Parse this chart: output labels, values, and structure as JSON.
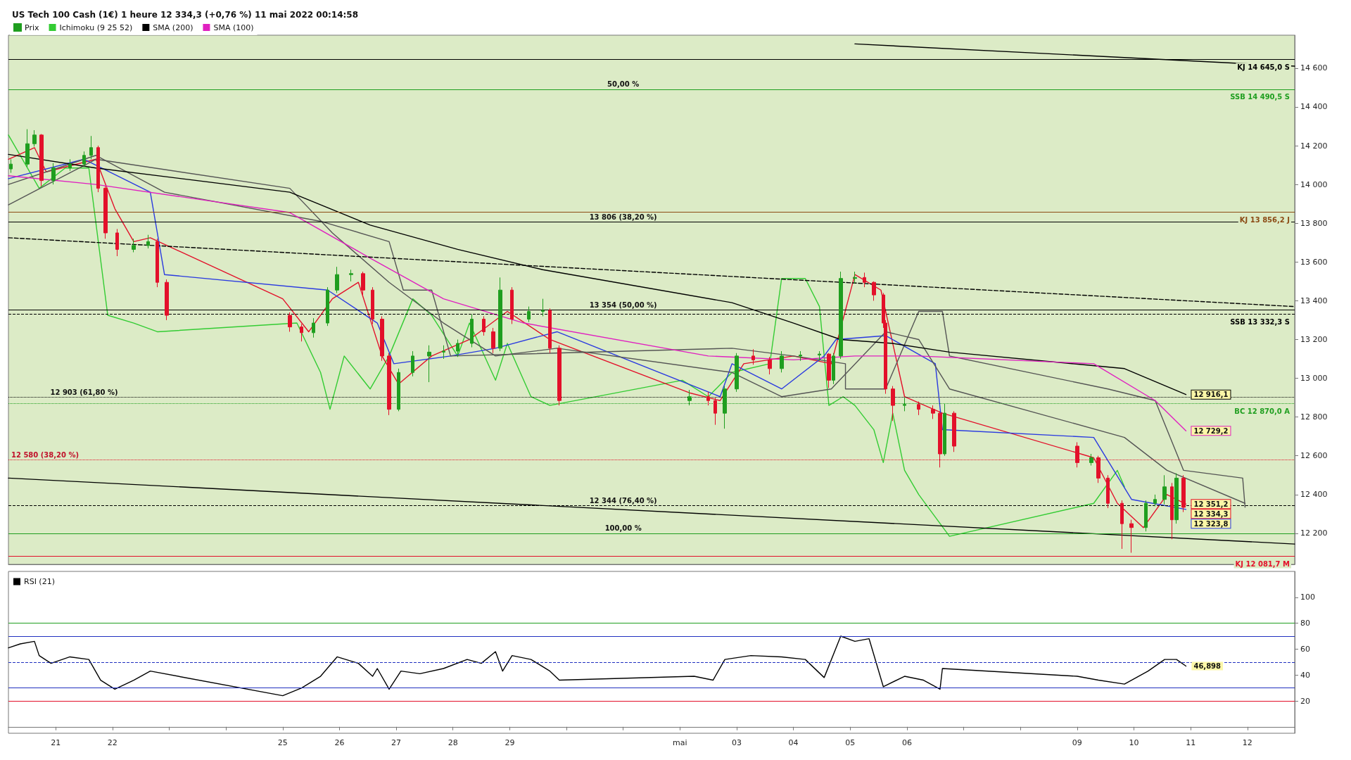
{
  "chart_data": [
    {
      "type": "candlestick",
      "title": "US Tech 100 Cash (1€) 1 heure 12 334,3 (+0,76 %) 11 mai 2022 00:14:58",
      "legend": "top left",
      "marker": "none",
      "tick_labels": "y",
      "xlim": [
        "2022-04-20T04:00",
        "2022-05-12T20:00"
      ],
      "ylim": [
        12040,
        14770
      ],
      "yticks": [
        {
          "value": 12200,
          "label": "12 200"
        },
        {
          "value": 12400,
          "label": "12 400"
        },
        {
          "value": 12600,
          "label": "12 600"
        },
        {
          "value": 12800,
          "label": "12 800"
        },
        {
          "value": 13000,
          "label": "13 000"
        },
        {
          "value": 13200,
          "label": "13 200"
        },
        {
          "value": 13400,
          "label": "13 400"
        },
        {
          "value": 13600,
          "label": "13 600"
        },
        {
          "value": 13800,
          "label": "13 800"
        },
        {
          "value": 14000,
          "label": "14 000"
        },
        {
          "value": 14200,
          "label": "14 200"
        },
        {
          "value": 14400,
          "label": "14 400"
        },
        {
          "value": 14600,
          "label": "14 600"
        }
      ],
      "series": [
        {
          "type": "candlestick",
          "name": "Prix",
          "color": "#1f9e1f",
          "x": [
            "2022-04-20T05:00",
            "2022-04-20T12:00",
            "2022-04-20T15:00",
            "2022-04-20T18:00",
            "2022-04-20T23:00",
            "2022-04-21T06:00",
            "2022-04-21T12:00",
            "2022-04-21T15:00",
            "2022-04-21T18:00",
            "2022-04-21T21:00",
            "2022-04-22T02:00",
            "2022-04-22T09:00",
            "2022-04-22T15:00",
            "2022-04-22T19:00",
            "2022-04-22T23:00",
            "2022-04-25T03:00",
            "2022-04-25T08:00",
            "2022-04-25T13:00",
            "2022-04-25T19:00",
            "2022-04-25T23:00",
            "2022-04-26T05:00",
            "2022-04-26T10:00",
            "2022-04-26T14:00",
            "2022-04-26T18:00",
            "2022-04-26T21:00",
            "2022-04-27T01:00",
            "2022-04-27T07:00",
            "2022-04-27T14:00",
            "2022-04-27T20:00",
            "2022-04-28T02:00",
            "2022-04-28T08:00",
            "2022-04-28T13:00",
            "2022-04-28T17:00",
            "2022-04-28T20:00",
            "2022-04-29T01:00",
            "2022-04-29T08:00",
            "2022-04-29T14:00",
            "2022-04-29T17:00",
            "2022-04-29T21:00",
            "2022-05-02T04:00",
            "2022-05-02T12:00",
            "2022-05-02T15:00",
            "2022-05-02T19:00",
            "2022-05-03T00:00",
            "2022-05-03T07:00",
            "2022-05-03T14:00",
            "2022-05-03T19:00",
            "2022-05-04T03:00",
            "2022-05-04T11:00",
            "2022-05-04T15:00",
            "2022-05-04T17:00",
            "2022-05-04T20:00",
            "2022-05-05T02:00",
            "2022-05-05T06:00",
            "2022-05-05T10:00",
            "2022-05-05T14:00",
            "2022-05-05T15:00",
            "2022-05-05T18:00",
            "2022-05-05T23:00",
            "2022-05-06T05:00",
            "2022-05-06T11:00",
            "2022-05-06T14:00",
            "2022-05-06T16:00",
            "2022-05-06T20:00",
            "2022-05-09T00:00",
            "2022-05-09T06:00",
            "2022-05-09T09:00",
            "2022-05-09T13:00",
            "2022-05-09T19:00",
            "2022-05-09T23:00",
            "2022-05-10T05:00",
            "2022-05-10T09:00",
            "2022-05-10T13:00",
            "2022-05-10T16:00",
            "2022-05-10T18:00",
            "2022-05-10T21:00"
          ],
          "ohlc": [
            [
              14080,
              14130,
              14060,
              14105
            ],
            [
              14105,
              14285,
              14090,
              14210
            ],
            [
              14210,
              14280,
              14195,
              14255
            ],
            [
              14255,
              14260,
              13990,
              14020
            ],
            [
              14020,
              14110,
              14000,
              14085
            ],
            [
              14085,
              14130,
              14070,
              14105
            ],
            [
              14105,
              14170,
              14090,
              14150
            ],
            [
              14150,
              14250,
              14130,
              14190
            ],
            [
              14190,
              14200,
              13960,
              13980
            ],
            [
              13980,
              13990,
              13720,
              13750
            ],
            [
              13750,
              13770,
              13630,
              13665
            ],
            [
              13665,
              13720,
              13650,
              13685
            ],
            [
              13685,
              13740,
              13670,
              13705
            ],
            [
              13705,
              13720,
              13470,
              13495
            ],
            [
              13495,
              13510,
              13300,
              13325
            ],
            [
              13325,
              13340,
              13240,
              13265
            ],
            [
              13265,
              13280,
              13190,
              13235
            ],
            [
              13235,
              13310,
              13210,
              13285
            ],
            [
              13285,
              13470,
              13270,
              13455
            ],
            [
              13455,
              13575,
              13440,
              13535
            ],
            [
              13535,
              13560,
              13500,
              13540
            ],
            [
              13540,
              13550,
              13430,
              13455
            ],
            [
              13455,
              13470,
              13280,
              13305
            ],
            [
              13305,
              13320,
              13090,
              13115
            ],
            [
              13115,
              13130,
              12810,
              12840
            ],
            [
              12840,
              13050,
              12830,
              13030
            ],
            [
              13030,
              13140,
              13010,
              13115
            ],
            [
              13115,
              13170,
              12980,
              13135
            ],
            [
              13135,
              13170,
              13100,
              13140
            ],
            [
              13140,
              13200,
              13110,
              13180
            ],
            [
              13180,
              13330,
              13160,
              13305
            ],
            [
              13305,
              13320,
              13220,
              13240
            ],
            [
              13240,
              13260,
              13130,
              13155
            ],
            [
              13155,
              13520,
              13140,
              13455
            ],
            [
              13455,
              13470,
              13280,
              13305
            ],
            [
              13305,
              13370,
              13290,
              13345
            ],
            [
              13345,
              13410,
              13320,
              13350
            ],
            [
              13350,
              13360,
              13130,
              13155
            ],
            [
              13155,
              13170,
              12860,
              12885
            ],
            [
              12885,
              12940,
              12860,
              12905
            ],
            [
              12905,
              12930,
              12860,
              12885
            ],
            [
              12885,
              12900,
              12760,
              12820
            ],
            [
              12820,
              12960,
              12740,
              12945
            ],
            [
              12945,
              13130,
              12930,
              13115
            ],
            [
              13115,
              13150,
              13070,
              13095
            ],
            [
              13095,
              13110,
              13020,
              13050
            ],
            [
              13050,
              13140,
              13030,
              13115
            ],
            [
              13115,
              13140,
              13090,
              13120
            ],
            [
              13120,
              13140,
              13090,
              13125
            ],
            [
              13125,
              13130,
              12950,
              12990
            ],
            [
              12990,
              13130,
              12970,
              13115
            ],
            [
              13115,
              13550,
              13100,
              13515
            ],
            [
              13515,
              13550,
              13490,
              13520
            ],
            [
              13520,
              13545,
              13470,
              13495
            ],
            [
              13495,
              13500,
              13400,
              13430
            ],
            [
              13430,
              13440,
              13260,
              13285
            ],
            [
              13285,
              13300,
              12920,
              12945
            ],
            [
              12945,
              12960,
              12780,
              12860
            ],
            [
              12860,
              12900,
              12830,
              12865
            ],
            [
              12865,
              12880,
              12810,
              12840
            ],
            [
              12840,
              12860,
              12790,
              12820
            ],
            [
              12820,
              12830,
              12540,
              12610
            ],
            [
              12610,
              12870,
              12600,
              12820
            ],
            [
              12820,
              12830,
              12620,
              12650
            ],
            [
              12650,
              12670,
              12540,
              12565
            ],
            [
              12565,
              12610,
              12550,
              12590
            ],
            [
              12590,
              12600,
              12460,
              12485
            ],
            [
              12485,
              12500,
              12330,
              12355
            ],
            [
              12355,
              12370,
              12120,
              12250
            ],
            [
              12250,
              12270,
              12100,
              12230
            ],
            [
              12230,
              12370,
              12210,
              12355
            ],
            [
              12355,
              12400,
              12340,
              12375
            ],
            [
              12375,
              12500,
              12350,
              12440
            ],
            [
              12440,
              12460,
              12170,
              12270
            ],
            [
              12270,
              12510,
              12250,
              12485
            ],
            [
              12485,
              12500,
              12310,
              12334.3
            ]
          ],
          "colors": [
            "#1f9e1f",
            "#1f9e1f",
            "#1f9e1f",
            "#e3102a",
            "#1f9e1f",
            "#1f9e1f",
            "#1f9e1f",
            "#1f9e1f",
            "#e3102a",
            "#e3102a",
            "#e3102a",
            "#1f9e1f",
            "#1f9e1f",
            "#e3102a",
            "#e3102a",
            "#e3102a",
            "#e3102a",
            "#1f9e1f",
            "#1f9e1f",
            "#1f9e1f",
            "#1f9e1f",
            "#e3102a",
            "#e3102a",
            "#e3102a",
            "#e3102a",
            "#1f9e1f",
            "#1f9e1f",
            "#1f9e1f",
            "#1f9e1f",
            "#1f9e1f",
            "#1f9e1f",
            "#e3102a",
            "#e3102a",
            "#1f9e1f",
            "#e3102a",
            "#1f9e1f",
            "#1f9e1f",
            "#e3102a",
            "#e3102a",
            "#1f9e1f",
            "#e3102a",
            "#e3102a",
            "#1f9e1f",
            "#1f9e1f",
            "#e3102a",
            "#e3102a",
            "#1f9e1f",
            "#1f9e1f",
            "#1f9e1f",
            "#e3102a",
            "#1f9e1f",
            "#1f9e1f",
            "#1f9e1f",
            "#e3102a",
            "#e3102a",
            "#e3102a",
            "#e3102a",
            "#e3102a",
            "#1f9e1f",
            "#e3102a",
            "#e3102a",
            "#e3102a",
            "#1f9e1f",
            "#e3102a",
            "#e3102a",
            "#1f9e1f",
            "#e3102a",
            "#e3102a",
            "#e3102a",
            "#e3102a",
            "#1f9e1f",
            "#1f9e1f",
            "#1f9e1f",
            "#e3102a",
            "#1f9e1f",
            "#e3102a"
          ],
          "value_labels": [
            null,
            null,
            null,
            null,
            null,
            null,
            null,
            null,
            null,
            null,
            null,
            null,
            null,
            null,
            null,
            null,
            null,
            null,
            null,
            null,
            null,
            null,
            null,
            null,
            null,
            null,
            null,
            null,
            null,
            null,
            null,
            null,
            null,
            null,
            null,
            null,
            null,
            null,
            null,
            null,
            null,
            null,
            null,
            null,
            null,
            null,
            null,
            null,
            null,
            null,
            null,
            null,
            null,
            null,
            null,
            null,
            null,
            null,
            null,
            null,
            null,
            null,
            null,
            null,
            null,
            null,
            null,
            null,
            null,
            null,
            null,
            null,
            null,
            null,
            null,
            "12 334,3"
          ]
        },
        {
          "type": "line",
          "name": "Ichimoku (9 25 52)",
          "color": "#33cc33",
          "x": [
            "2022-04-20T04:00",
            "2022-04-20T17:00",
            "2022-04-21T04:00",
            "2022-04-21T14:00",
            "2022-04-21T22:00",
            "2022-04-22T09:00",
            "2022-04-22T19:00",
            "2022-04-25T06:00",
            "2022-04-25T16:00",
            "2022-04-25T20:00",
            "2022-04-26T02:00",
            "2022-04-26T13:00",
            "2022-04-26T21:00",
            "2022-04-27T07:00",
            "2022-04-27T15:00",
            "2022-04-28T02:00",
            "2022-04-28T07:00",
            "2022-04-28T18:00",
            "2022-04-28T23:00",
            "2022-04-29T09:00",
            "2022-04-29T17:00",
            "2022-05-02T01:00",
            "2022-05-02T12:00",
            "2022-05-02T22:00",
            "2022-05-03T14:00",
            "2022-05-03T19:00",
            "2022-05-04T05:00",
            "2022-05-04T11:00",
            "2022-05-04T15:00",
            "2022-05-04T21:00",
            "2022-05-05T02:00",
            "2022-05-05T10:00",
            "2022-05-05T14:00",
            "2022-05-05T18:00",
            "2022-05-05T23:00",
            "2022-05-06T05:00",
            "2022-05-06T18:00",
            "2022-05-09T07:00",
            "2022-05-09T17:00",
            "2022-05-09T20:00"
          ],
          "values": [
            14255,
            13980,
            14085,
            14085,
            13325,
            13285,
            13240,
            13285,
            13030,
            12840,
            13115,
            12945,
            13115,
            13410,
            13325,
            13115,
            13285,
            12990,
            13180,
            12905,
            12860,
            12990,
            12905,
            13030,
            13075,
            13515,
            13515,
            13370,
            12860,
            12905,
            12860,
            12735,
            12565,
            12820,
            12525,
            12400,
            12185,
            12355,
            12525,
            12440
          ]
        },
        {
          "type": "line",
          "color": "#e3102a",
          "x": [
            "2022-04-20T04:00",
            "2022-04-20T15:00",
            "2022-04-20T20:00",
            "2022-04-21T17:00",
            "2022-04-22T01:00",
            "2022-04-22T09:00",
            "2022-04-22T16:00",
            "2022-04-25T00:00",
            "2022-04-25T11:00",
            "2022-04-25T21:00",
            "2022-04-26T08:00",
            "2022-04-26T18:00",
            "2022-04-27T01:00",
            "2022-04-27T15:00",
            "2022-04-28T07:00",
            "2022-04-28T23:00",
            "2022-04-29T17:00",
            "2022-05-02T04:00",
            "2022-05-02T17:00",
            "2022-05-03T03:00",
            "2022-05-04T00:00",
            "2022-05-04T16:00",
            "2022-05-05T02:00",
            "2022-05-05T13:00",
            "2022-05-05T23:00",
            "2022-05-06T15:00",
            "2022-05-09T07:00",
            "2022-05-09T17:00",
            "2022-05-10T04:00",
            "2022-05-10T14:00",
            "2022-05-10T22:00"
          ],
          "values": [
            14130,
            14190,
            14065,
            14130,
            13875,
            13705,
            13725,
            13410,
            13240,
            13410,
            13495,
            13115,
            12970,
            13115,
            13200,
            13345,
            13200,
            12925,
            12885,
            13075,
            13115,
            13075,
            13535,
            13455,
            12905,
            12820,
            12590,
            12355,
            12230,
            12400,
            12351.2
          ],
          "value_labels": [
            null,
            null,
            null,
            null,
            null,
            null,
            null,
            null,
            null,
            null,
            null,
            null,
            null,
            null,
            null,
            null,
            null,
            null,
            null,
            null,
            null,
            null,
            null,
            null,
            null,
            null,
            null,
            null,
            null,
            null,
            "12 351,2"
          ]
        },
        {
          "type": "line",
          "color": "#2a3ae0",
          "x": [
            "2022-04-20T04:00",
            "2022-04-21T12:00",
            "2022-04-22T16:00",
            "2022-04-22T22:00",
            "2022-04-25T19:00",
            "2022-04-26T16:00",
            "2022-04-26T23:00",
            "2022-04-27T23:00",
            "2022-04-28T18:00",
            "2022-04-29T20:00",
            "2022-05-02T17:00",
            "2022-05-02T22:00",
            "2022-05-03T19:00",
            "2022-05-04T13:00",
            "2022-05-04T18:00",
            "2022-05-05T15:00",
            "2022-05-06T12:00",
            "2022-05-06T15:00",
            "2022-05-09T07:00",
            "2022-05-09T23:00",
            "2022-05-10T22:00"
          ],
          "values": [
            14030,
            14130,
            13960,
            13535,
            13455,
            13285,
            13075,
            13115,
            13155,
            13240,
            12905,
            13075,
            12945,
            13115,
            13200,
            13220,
            13075,
            12735,
            12695,
            12375,
            12323.8
          ],
          "value_labels": [
            null,
            null,
            null,
            null,
            null,
            null,
            null,
            null,
            null,
            null,
            null,
            null,
            null,
            null,
            null,
            null,
            null,
            null,
            null,
            null,
            "12 323,8"
          ]
        },
        {
          "type": "line",
          "color": "#555555",
          "x": [
            "2022-04-20T04:00",
            "2022-04-21T17:00",
            "2022-04-25T03:00",
            "2022-04-25T21:00",
            "2022-04-26T21:00",
            "2022-04-27T20:00",
            "2022-04-28T18:00",
            "2022-04-29T20:00",
            "2022-05-02T22:00",
            "2022-05-03T19:00",
            "2022-05-04T16:00",
            "2022-05-05T15:00",
            "2022-05-06T05:00",
            "2022-05-06T18:00",
            "2022-05-09T20:00",
            "2022-05-10T14:00",
            "2022-05-11T23:00"
          ],
          "values": [
            13895,
            14130,
            13980,
            13750,
            13495,
            13285,
            13115,
            13155,
            13030,
            12905,
            12945,
            13240,
            13200,
            12945,
            12695,
            12525,
            12355
          ]
        },
        {
          "type": "line",
          "color": "#555555",
          "x": [
            "2022-04-20T04:00",
            "2022-04-21T17:00",
            "2022-04-22T22:00",
            "2022-04-25T16:00",
            "2022-04-26T21:00",
            "2022-04-27T03:00",
            "2022-04-27T15:00",
            "2022-04-27T23:00",
            "2022-05-02T22:00",
            "2022-05-04T00:00",
            "2022-05-04T22:00",
            "2022-05-04T22:00",
            "2022-05-05T15:00",
            "2022-05-06T05:00",
            "2022-05-06T15:00",
            "2022-05-06T18:00",
            "2022-05-09T13:00",
            "2022-05-10T09:00",
            "2022-05-10T21:00",
            "2022-05-11T22:00",
            "2022-05-11T23:00"
          ],
          "values": [
            14000,
            14150,
            13960,
            13810,
            13705,
            13455,
            13455,
            13115,
            13155,
            13115,
            13075,
            12945,
            12945,
            13345,
            13345,
            13115,
            12945,
            12885,
            12525,
            12485,
            12335
          ]
        },
        {
          "type": "line",
          "name": "SMA (200)",
          "color": "#000000",
          "x": [
            "2022-04-20T04:00",
            "2022-04-21T17:00",
            "2022-04-25T03:00",
            "2022-04-26T13:00",
            "2022-04-28T02:00",
            "2022-04-29T14:00",
            "2022-05-02T22:00",
            "2022-05-04T00:00",
            "2022-05-04T20:00",
            "2022-05-05T18:00",
            "2022-05-06T18:00",
            "2022-05-09T20:00",
            "2022-05-10T22:00"
          ],
          "values": [
            14155,
            14085,
            13960,
            13790,
            13665,
            13560,
            13390,
            13285,
            13200,
            13180,
            13135,
            13050,
            12916.1
          ],
          "value_labels": [
            null,
            null,
            null,
            null,
            null,
            null,
            null,
            null,
            null,
            null,
            null,
            null,
            "12 916,1"
          ]
        },
        {
          "type": "line",
          "name": "SMA (100)",
          "color": "#e020c0",
          "x": [
            "2022-04-20T04:00",
            "2022-04-21T17:00",
            "2022-04-25T03:00",
            "2022-04-26T13:00",
            "2022-04-27T20:00",
            "2022-04-29T06:00",
            "2022-05-02T12:00",
            "2022-05-04T00:00",
            "2022-05-05T02:00",
            "2022-05-06T05:00",
            "2022-05-09T07:00",
            "2022-05-10T09:00",
            "2022-05-10T22:00"
          ],
          "values": [
            14045,
            14000,
            13855,
            13620,
            13410,
            13285,
            13115,
            13095,
            13115,
            13115,
            13075,
            12885,
            12729.2
          ],
          "value_labels": [
            null,
            null,
            null,
            null,
            null,
            null,
            null,
            null,
            null,
            null,
            null,
            null,
            "12 729,2"
          ]
        },
        {
          "type": "line",
          "color": "#000000",
          "x": [
            "2022-05-05T02:00",
            "2022-05-12T20:00"
          ],
          "values": [
            14725,
            14610
          ]
        },
        {
          "type": "line",
          "color": "#000000",
          "line_style": "dashed",
          "x": [
            "2022-04-20T04:00",
            "2022-05-12T20:00"
          ],
          "values": [
            13725,
            13370
          ]
        },
        {
          "type": "line",
          "color": "#000000",
          "x": [
            "2022-04-20T04:00",
            "2022-05-12T20:00"
          ],
          "values": [
            12485,
            12145
          ]
        }
      ],
      "ref_lines": [
        {
          "axis": "y",
          "value": 14645,
          "label": "KJ 14 645,0 S",
          "color": "#000000"
        },
        {
          "axis": "y",
          "value": 14490.5,
          "label": "SSB 14 490,5 S",
          "color": "#1f9e1f"
        },
        {
          "axis": "y",
          "value": 13856.2,
          "label": "KJ 13 856,2 J",
          "color": "#8b4a14"
        },
        {
          "axis": "y",
          "value": 13806,
          "color": "#000000"
        },
        {
          "axis": "y",
          "value": 13354,
          "color": "#000000"
        },
        {
          "axis": "y",
          "value": 13332.3,
          "label": "SSB 13 332,3 S",
          "color": "#000000",
          "line_style": "dashed"
        },
        {
          "axis": "y",
          "value": 12903,
          "color": "#000000",
          "line_style": "dotted"
        },
        {
          "axis": "y",
          "value": 12870,
          "label": "BC 12 870,0 A",
          "color": "#1f9e1f",
          "line_style": "dotted"
        },
        {
          "axis": "y",
          "value": 12580,
          "color": "#e3102a",
          "line_style": "dotted"
        },
        {
          "axis": "y",
          "value": 12344,
          "color": "#000000",
          "line_style": "dashed"
        },
        {
          "axis": "y",
          "value": 12200,
          "color": "#1f9e1f"
        },
        {
          "axis": "y",
          "value": 12081.7,
          "label": "KJ 12 081,7 M",
          "color": "#e3102a"
        }
      ],
      "annotations": [
        {
          "text": "50,00 %",
          "x": "2022-05-01T00:00",
          "y": 14490.5
        },
        {
          "text": "13 806 (38,20 %)",
          "x": "2022-05-01T00:00",
          "y": 13806
        },
        {
          "text": "13 354 (50,00 %)",
          "x": "2022-05-01T00:00",
          "y": 13354
        },
        {
          "text": "12 903 (61,80 %)",
          "x": "2022-04-21T12:00",
          "y": 12903
        },
        {
          "text": "12 344 (76,40 %)",
          "x": "2022-05-01T00:00",
          "y": 12344
        },
        {
          "text": "100,00 %",
          "x": "2022-05-01T00:00",
          "y": 12200
        },
        {
          "text": "12 580 (38,20 %)",
          "x": "2022-04-20T04:00",
          "y": 12580
        }
      ]
    },
    {
      "type": "line",
      "legend": "top left",
      "marker": "none",
      "xlim": [
        "2022-04-20T04:00",
        "2022-05-12T20:00"
      ],
      "ylim": [
        -5,
        120
      ],
      "yticks": [
        20,
        40,
        60,
        80,
        100
      ],
      "xticks": [
        {
          "value": "2022-04-21",
          "label": "21"
        },
        {
          "value": "2022-04-22",
          "label": "22"
        },
        {
          "value": "2022-04-25",
          "label": "25"
        },
        {
          "value": "2022-04-26",
          "label": "26"
        },
        {
          "value": "2022-04-27",
          "label": "27"
        },
        {
          "value": "2022-04-28",
          "label": "28"
        },
        {
          "value": "2022-04-29",
          "label": "29"
        },
        {
          "value": "2022-05-02",
          "label": "mai"
        },
        {
          "value": "2022-05-03",
          "label": "03"
        },
        {
          "value": "2022-05-04",
          "label": "04"
        },
        {
          "value": "2022-05-05",
          "label": "05"
        },
        {
          "value": "2022-05-06",
          "label": "06"
        },
        {
          "value": "2022-05-09",
          "label": "09"
        },
        {
          "value": "2022-05-10",
          "label": "10"
        },
        {
          "value": "2022-05-11",
          "label": "11"
        },
        {
          "value": "2022-05-12",
          "label": "12"
        }
      ],
      "series": [
        {
          "name": "RSI (21)",
          "color": "#000000",
          "x": [
            "2022-04-20T04:00",
            "2022-04-20T09:00",
            "2022-04-20T15:00",
            "2022-04-20T17:00",
            "2022-04-20T22:00",
            "2022-04-21T06:00",
            "2022-04-21T14:00",
            "2022-04-21T19:00",
            "2022-04-22T01:00",
            "2022-04-22T09:00",
            "2022-04-22T16:00",
            "2022-04-25T00:00",
            "2022-04-25T08:00",
            "2022-04-25T16:00",
            "2022-04-25T23:00",
            "2022-04-26T08:00",
            "2022-04-26T14:00",
            "2022-04-26T16:00",
            "2022-04-26T21:00",
            "2022-04-27T02:00",
            "2022-04-27T10:00",
            "2022-04-27T20:00",
            "2022-04-28T06:00",
            "2022-04-28T12:00",
            "2022-04-28T18:00",
            "2022-04-28T21:00",
            "2022-04-29T01:00",
            "2022-04-29T09:00",
            "2022-04-29T17:00",
            "2022-04-29T21:00",
            "2022-05-02T06:00",
            "2022-05-02T14:00",
            "2022-05-02T19:00",
            "2022-05-03T06:00",
            "2022-05-03T19:00",
            "2022-05-04T05:00",
            "2022-05-04T13:00",
            "2022-05-04T20:00",
            "2022-05-05T02:00",
            "2022-05-05T08:00",
            "2022-05-05T14:00",
            "2022-05-05T23:00",
            "2022-05-06T07:00",
            "2022-05-06T14:00",
            "2022-05-06T15:00",
            "2022-05-09T00:00",
            "2022-05-09T09:00",
            "2022-05-09T20:00",
            "2022-05-10T01:00",
            "2022-05-10T06:00",
            "2022-05-10T13:00",
            "2022-05-10T18:00",
            "2022-05-10T22:00"
          ],
          "values": [
            61,
            64,
            66,
            55,
            49,
            54,
            52,
            36,
            29,
            36,
            43,
            24,
            30,
            39,
            54,
            49,
            39,
            45,
            29,
            43,
            41,
            45,
            52,
            49,
            58,
            43,
            55,
            52,
            43,
            36,
            39,
            36,
            52,
            55,
            54,
            52,
            38,
            70,
            66,
            68,
            31,
            39,
            36,
            29,
            45,
            39,
            36,
            33,
            38,
            43,
            52,
            52,
            46.898
          ],
          "line_style": "solid"
        }
      ],
      "annotations": [
        {
          "text": "46,898",
          "x": "2022-05-10T22:00",
          "y": 46.898
        }
      ],
      "ref_lines": [
        {
          "axis": "y",
          "value": 80,
          "color": "#1f9e1f"
        },
        {
          "axis": "y",
          "value": 70,
          "color": "#2030c0"
        },
        {
          "axis": "y",
          "value": 50,
          "color": "#2030c0",
          "line_style": "dashed"
        },
        {
          "axis": "y",
          "value": 30,
          "color": "#2030c0"
        },
        {
          "axis": "y",
          "value": 20,
          "color": "#e3102a"
        }
      ]
    }
  ]
}
